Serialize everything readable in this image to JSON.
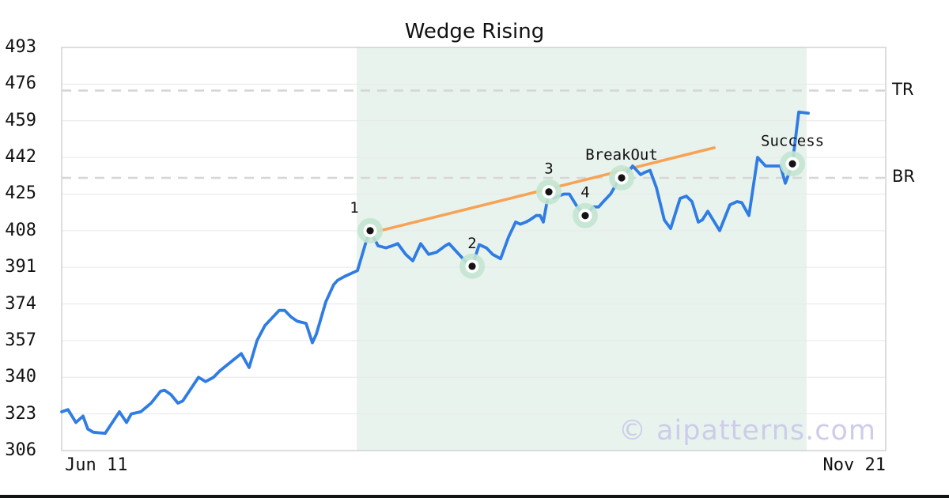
{
  "title": "Wedge Rising",
  "watermark": "© aipatterns.com",
  "colors": {
    "series_blue": "#2f7ce3",
    "trendline_orange": "#f7a355",
    "pattern_zone_mint": "#e9f3ee",
    "marker_halo_green": "#c3e5d0",
    "marker_dot_black": "#141414",
    "grid_gray": "#e7e7e7",
    "border_gray": "#c8c8c8",
    "dashed_level_gray": "#d6d6d6",
    "watermark_lavender": "#cdcde9",
    "text_black": "#111111"
  },
  "chart_data": {
    "type": "line",
    "title": "Wedge Rising",
    "pattern_name": "Wedge Rising",
    "x_axis": {
      "start_label": "Jun 11",
      "end_label": "Nov 21"
    },
    "y_axis": {
      "ticks": [
        493,
        476,
        459,
        442,
        425,
        408,
        391,
        374,
        357,
        340,
        323,
        306
      ],
      "min": 306,
      "max": 493
    },
    "grid": true,
    "legend": false,
    "levels": [
      {
        "id": "tr",
        "label": "TR",
        "value": 473
      },
      {
        "id": "br",
        "label": "BR",
        "value": 432.5
      }
    ],
    "pattern_zone": {
      "x_pct_from": 35.8,
      "x_pct_to": 90.4
    },
    "trendline": {
      "from": {
        "x_pct": 37.6,
        "value": 407
      },
      "to": {
        "x_pct": 79.2,
        "value": 446.5
      }
    },
    "markers": [
      {
        "label": "1",
        "x_pct": 37.43,
        "value": 408,
        "dx": -20
      },
      {
        "label": "2",
        "x_pct": 49.81,
        "value": 391.5,
        "dx": 0
      },
      {
        "label": "3",
        "x_pct": 59.12,
        "value": 426,
        "dx": 0
      },
      {
        "label": "4",
        "x_pct": 63.53,
        "value": 415,
        "dx": 0
      },
      {
        "label": "BreakOut",
        "x_pct": 67.95,
        "value": 432.5,
        "dx": 0
      },
      {
        "label": "Success",
        "x_pct": 88.68,
        "value": 439,
        "dx": 0
      }
    ],
    "series": {
      "name": "price",
      "points": [
        [
          0,
          324
        ],
        [
          0.77,
          325
        ],
        [
          1.73,
          319
        ],
        [
          2.59,
          322
        ],
        [
          3.17,
          316
        ],
        [
          3.84,
          314.5
        ],
        [
          5.28,
          314
        ],
        [
          7.01,
          324
        ],
        [
          7.87,
          319
        ],
        [
          8.45,
          323
        ],
        [
          9.6,
          324
        ],
        [
          10.84,
          328
        ],
        [
          12.0,
          333.5
        ],
        [
          12.48,
          334
        ],
        [
          13.24,
          332
        ],
        [
          14.11,
          328
        ],
        [
          14.68,
          329
        ],
        [
          16.6,
          340
        ],
        [
          17.47,
          338
        ],
        [
          18.43,
          340
        ],
        [
          19.19,
          343
        ],
        [
          20.82,
          348
        ],
        [
          21.79,
          351
        ],
        [
          22.74,
          344.5
        ],
        [
          23.7,
          357
        ],
        [
          24.66,
          364
        ],
        [
          26.39,
          371
        ],
        [
          27.06,
          371
        ],
        [
          27.83,
          368
        ],
        [
          28.6,
          366
        ],
        [
          29.65,
          365
        ],
        [
          30.42,
          356
        ],
        [
          30.9,
          360
        ],
        [
          32.05,
          375
        ],
        [
          33.01,
          383
        ],
        [
          33.49,
          385
        ],
        [
          34.45,
          387
        ],
        [
          35.89,
          389.5
        ],
        [
          36.95,
          403
        ],
        [
          37.43,
          408
        ],
        [
          38.39,
          401
        ],
        [
          39.35,
          400
        ],
        [
          40.12,
          401
        ],
        [
          40.79,
          402
        ],
        [
          41.75,
          397
        ],
        [
          42.61,
          394
        ],
        [
          43.57,
          402
        ],
        [
          44.53,
          397
        ],
        [
          45.49,
          398
        ],
        [
          46.55,
          401
        ],
        [
          47.02,
          402
        ],
        [
          49.42,
          392
        ],
        [
          49.81,
          391.5
        ],
        [
          50.67,
          401.5
        ],
        [
          51.54,
          400
        ],
        [
          52.3,
          397
        ],
        [
          53.26,
          395
        ],
        [
          54.22,
          405
        ],
        [
          55.09,
          412
        ],
        [
          55.66,
          411
        ],
        [
          56.33,
          412
        ],
        [
          56.81,
          413
        ],
        [
          57.58,
          415
        ],
        [
          58.06,
          415
        ],
        [
          58.45,
          412
        ],
        [
          59.12,
          426
        ],
        [
          59.69,
          423
        ],
        [
          60.27,
          424
        ],
        [
          60.94,
          425
        ],
        [
          61.61,
          425
        ],
        [
          62.57,
          419
        ],
        [
          63.53,
          415
        ],
        [
          64.49,
          419
        ],
        [
          65.16,
          419
        ],
        [
          65.74,
          421.5
        ],
        [
          66.6,
          425
        ],
        [
          67.37,
          430
        ],
        [
          67.95,
          432.5
        ],
        [
          69.1,
          437
        ],
        [
          69.29,
          438
        ],
        [
          70.25,
          434
        ],
        [
          70.73,
          435
        ],
        [
          71.4,
          436
        ],
        [
          72.17,
          428
        ],
        [
          73.13,
          413
        ],
        [
          73.9,
          409
        ],
        [
          75.05,
          423
        ],
        [
          75.82,
          424
        ],
        [
          76.49,
          421.5
        ],
        [
          77.26,
          412
        ],
        [
          77.74,
          413
        ],
        [
          78.41,
          417
        ],
        [
          79.85,
          408
        ],
        [
          81.09,
          420
        ],
        [
          81.96,
          421.5
        ],
        [
          82.53,
          421
        ],
        [
          83.4,
          415
        ],
        [
          84.45,
          442
        ],
        [
          85.41,
          438
        ],
        [
          86.56,
          438
        ],
        [
          87.24,
          438
        ],
        [
          87.81,
          430
        ],
        [
          88.68,
          439
        ],
        [
          89.44,
          463
        ],
        [
          90.6,
          462.5
        ]
      ]
    }
  }
}
